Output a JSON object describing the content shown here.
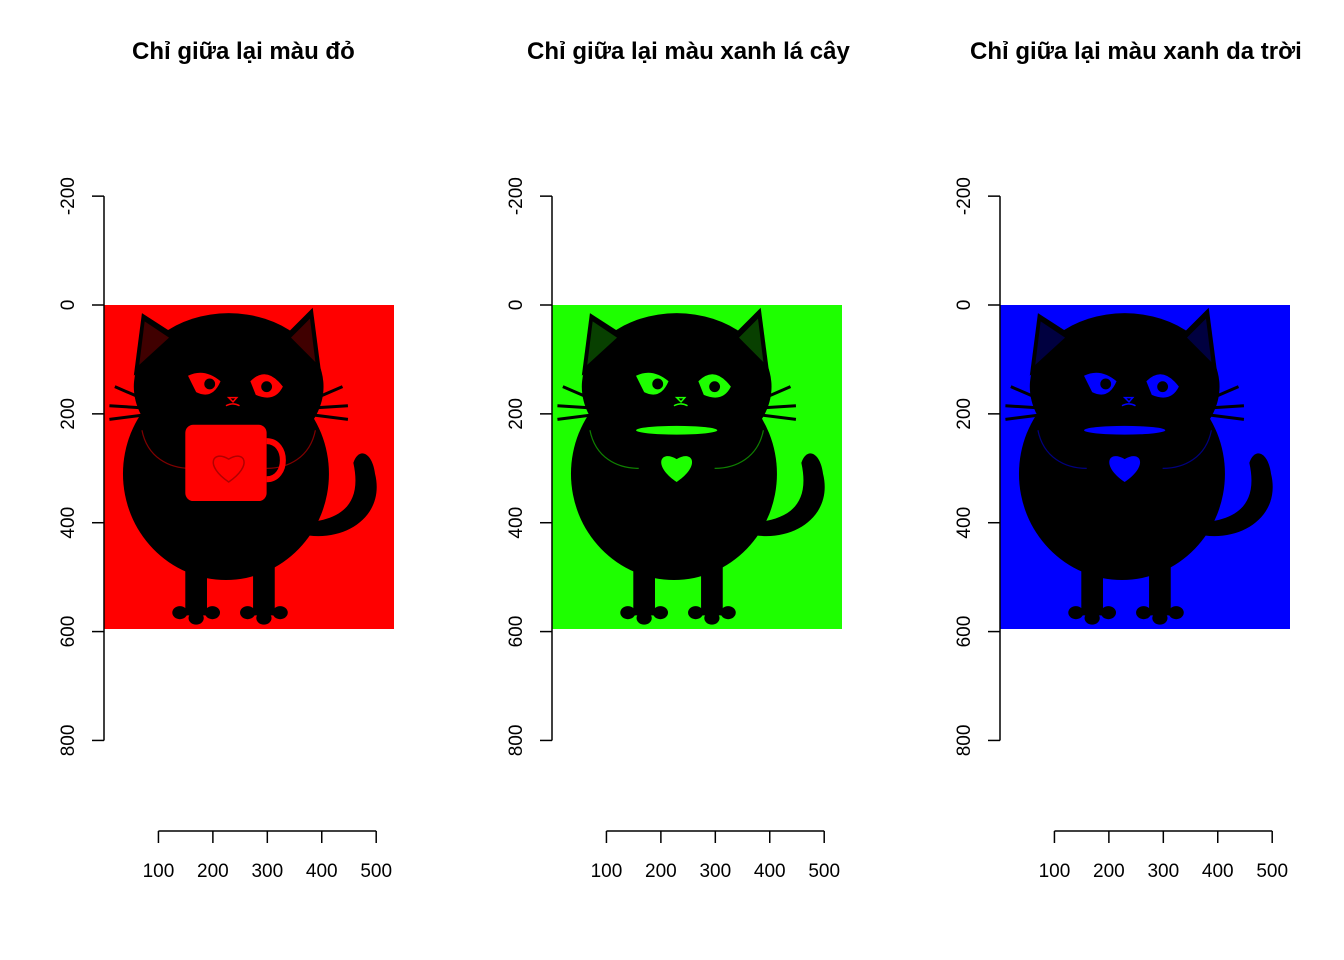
{
  "chart_data": [
    {
      "type": "image",
      "title": "Chỉ giữa lại màu đỏ",
      "channel_color": "#ff0000",
      "eye_color": "#ff0000",
      "mug_color": "#ff0000",
      "x_ticks": [
        "100",
        "200",
        "300",
        "400",
        "500"
      ],
      "y_ticks": [
        "-200",
        "0",
        "200",
        "400",
        "600",
        "800"
      ],
      "x_tick_values": [
        100,
        200,
        300,
        400,
        500
      ],
      "y_tick_values": [
        -200,
        0,
        200,
        400,
        600,
        800
      ],
      "image_extent": {
        "x": [
          0,
          535
        ],
        "y": [
          0,
          595
        ]
      },
      "ylim": [
        -200,
        800
      ],
      "xlim": [
        100,
        500
      ]
    },
    {
      "type": "image",
      "title": "Chỉ giữa lại màu xanh lá cây",
      "channel_color": "#1eff00",
      "eye_color": "#1eff00",
      "mug_color": "#1eff00",
      "x_ticks": [
        "100",
        "200",
        "300",
        "400",
        "500"
      ],
      "y_ticks": [
        "-200",
        "0",
        "200",
        "400",
        "600",
        "800"
      ],
      "x_tick_values": [
        100,
        200,
        300,
        400,
        500
      ],
      "y_tick_values": [
        -200,
        0,
        200,
        400,
        600,
        800
      ],
      "image_extent": {
        "x": [
          0,
          535
        ],
        "y": [
          0,
          595
        ]
      },
      "ylim": [
        -200,
        800
      ],
      "xlim": [
        100,
        500
      ]
    },
    {
      "type": "image",
      "title": "Chỉ giữa lại màu xanh da trời",
      "channel_color": "#0000ff",
      "eye_color": "#0000ff",
      "mug_color": "#0000ff",
      "x_ticks": [
        "100",
        "200",
        "300",
        "400",
        "500"
      ],
      "y_ticks": [
        "-200",
        "0",
        "200",
        "400",
        "600",
        "800"
      ],
      "x_tick_values": [
        100,
        200,
        300,
        400,
        500
      ],
      "y_tick_values": [
        -200,
        0,
        200,
        400,
        600,
        800
      ],
      "image_extent": {
        "x": [
          0,
          535
        ],
        "y": [
          0,
          595
        ]
      },
      "ylim": [
        -200,
        800
      ],
      "xlim": [
        100,
        500
      ]
    }
  ]
}
